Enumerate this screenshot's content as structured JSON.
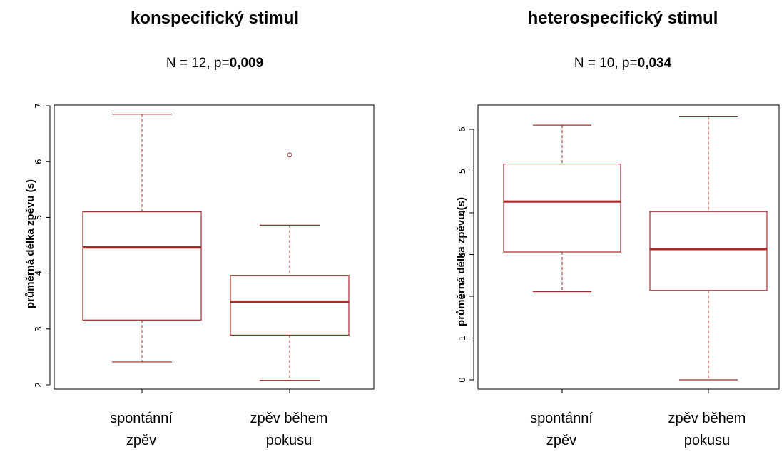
{
  "chart_data": [
    {
      "type": "box",
      "title": "konspecifický stimul",
      "subtitle_prefix": "N = 12, p=",
      "subtitle_p": "0,009",
      "ylabel": "průměrná délka zpěvu (s)",
      "ylim": [
        2,
        7
      ],
      "yticks": [
        "2",
        "3",
        "4",
        "5",
        "6",
        "7"
      ],
      "categories": [
        {
          "line1": "spontánní",
          "line2": "zpěv"
        },
        {
          "line1": "zpěv během",
          "line2": "pokusu"
        }
      ],
      "boxes": [
        {
          "whisker_low": 2.41,
          "q1": 3.16,
          "median": 4.46,
          "q3": 5.1,
          "whisker_high": 6.85,
          "outliers": []
        },
        {
          "whisker_low": 2.08,
          "q1": 2.89,
          "median": 3.49,
          "q3": 3.96,
          "whisker_high": 4.86,
          "outliers": [
            6.12
          ]
        }
      ],
      "color": "#a52a2a"
    },
    {
      "type": "box",
      "title": "heterospecifický stimul",
      "subtitle_prefix": "N = 10, p=",
      "subtitle_p": "0,034",
      "ylabel": "průměrná délka zpěvu (s)",
      "ylim": [
        0,
        6
      ],
      "yticks": [
        "0",
        "1",
        "2",
        "3",
        "4",
        "5",
        "6"
      ],
      "categories": [
        {
          "line1": "spontánní",
          "line2": "zpěv"
        },
        {
          "line1": "zpěv během",
          "line2": "pokusu"
        }
      ],
      "boxes": [
        {
          "whisker_low": 2.11,
          "q1": 3.06,
          "median": 4.27,
          "q3": 5.17,
          "whisker_high": 6.1,
          "outliers": []
        },
        {
          "whisker_low": 0.0,
          "q1": 2.14,
          "median": 3.13,
          "q3": 4.03,
          "whisker_high": 6.3,
          "outliers": []
        }
      ],
      "color": "#a52a2a"
    }
  ]
}
